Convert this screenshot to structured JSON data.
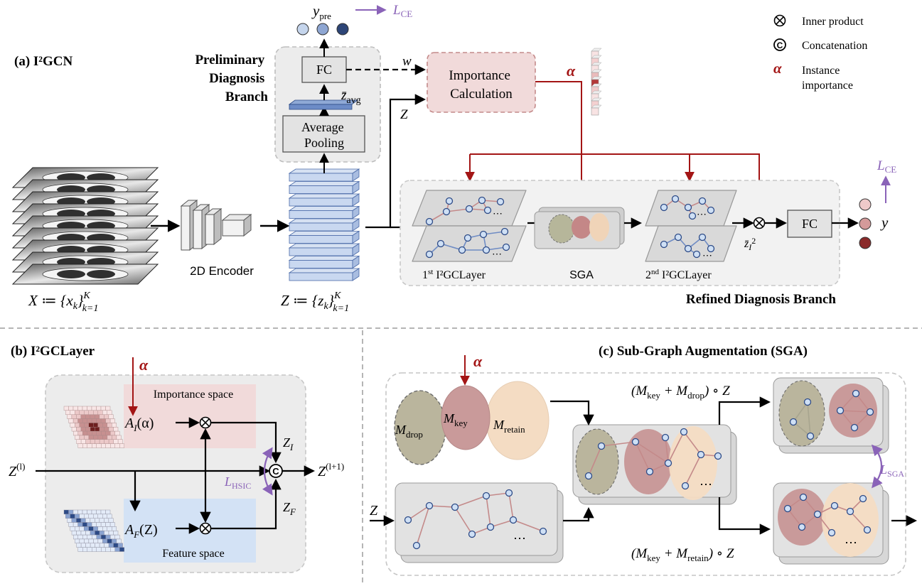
{
  "panel_a": {
    "title": "(a) I²GCN",
    "encoder_label": "2D Encoder",
    "x_set": "X ≔ {x",
    "x_set_sub": "k",
    "x_set_close": "}",
    "x_set_range_sup": "K",
    "x_set_range_sub": "k=1",
    "z_set": "Z ≔ {z",
    "z_set_sub": "k",
    "z_set_close": "}",
    "z_set_range_sup": "K",
    "z_set_range_sub": "k=1",
    "prelim_branch": [
      "Preliminary",
      "Diagnosis",
      "Branch"
    ],
    "fc_label": "FC",
    "avg_pool": [
      "Average",
      "Pooling"
    ],
    "z_avg": "z̄",
    "z_avg_sub": "avg",
    "y_pre": "y",
    "y_pre_sub": "pre",
    "l_ce_top": "L",
    "l_ce_top_sub": "CE",
    "w_label": "w",
    "z_label": "Z",
    "importance_calc": [
      "Importance",
      "Calculation"
    ],
    "alpha": "α",
    "layer1": "1",
    "layer1_sup": "st",
    "layer1_rest": " I²GCLayer",
    "sga_label": "SGA",
    "layer2": "2",
    "layer2_sup": "nd",
    "layer2_rest": " I²GCLayer",
    "z_i2": "z̄",
    "z_i2_sub": "I",
    "z_i2_sup": "2",
    "fc_right": "FC",
    "y_label": "y",
    "l_ce_right": "L",
    "l_ce_right_sub": "CE",
    "refined_branch": "Refined Diagnosis Branch"
  },
  "legend": {
    "inner_product": "Inner product",
    "concatenation": "Concatenation",
    "alpha": "α",
    "instance_importance": [
      "Instance",
      "importance"
    ]
  },
  "panel_b": {
    "title": "(b) I²GCLayer",
    "alpha": "α",
    "importance_space": "Importance space",
    "feature_space": "Feature space",
    "a_i": "A",
    "a_i_sub": "I",
    "a_i_arg": "(α)",
    "a_f": "A",
    "a_f_sub": "F",
    "a_f_arg": "(Z)",
    "z_in": "Z",
    "z_in_sup": "(l)",
    "z_out": "Z",
    "z_out_sup": "(l+1)",
    "z_i": "Z",
    "z_i_sub": "I",
    "z_f": "Z",
    "z_f_sub": "F",
    "l_hsic": "L",
    "l_hsic_sub": "HSIC"
  },
  "panel_c": {
    "title": "(c) Sub-Graph Augmentation (SGA)",
    "alpha": "α",
    "m_drop": "M",
    "m_drop_sub": "drop",
    "m_key": "M",
    "m_key_sub": "key",
    "m_retain": "M",
    "m_retain_sub": "retain",
    "z_label": "Z",
    "top_formula": "(M",
    "top_formula_a": "key",
    "top_formula_mid": " + M",
    "top_formula_b": "drop",
    "top_formula_end": ") ∘ Z",
    "bot_formula": "(M",
    "bot_formula_a": "key",
    "bot_formula_mid": " + M",
    "bot_formula_b": "retain",
    "bot_formula_end": ") ∘ Z",
    "l_sga": "L",
    "l_sga_sub": "SGA",
    "ellipsis": "⋯"
  },
  "colors": {
    "red_arrow": "#a31515",
    "purple": "#8a63b8",
    "importance_fill": "#f1dada",
    "feature_fill": "#d3e2f5",
    "node_fill": "#cfe0f5",
    "node_stroke": "#2c4a86",
    "edge": "#c48a8a"
  },
  "icons": {
    "inner_product": "circled-times-icon",
    "concatenation": "circled-c-icon"
  }
}
